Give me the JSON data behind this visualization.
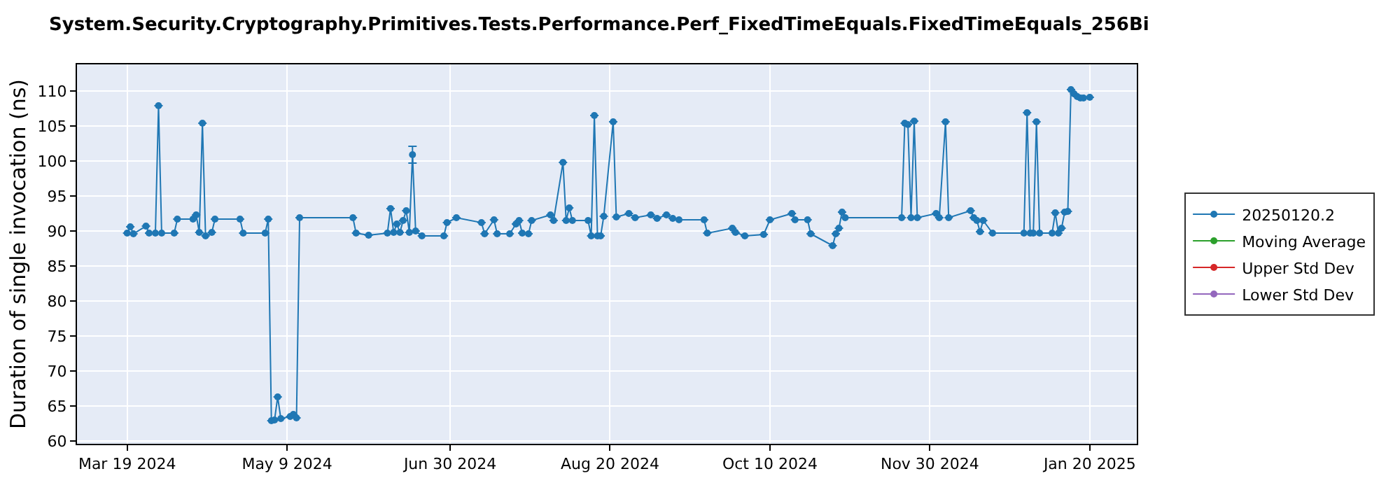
{
  "chart_data": {
    "type": "line",
    "title": "System.Security.Cryptography.Primitives.Tests.Performance.Perf_FixedTimeEquals.FixedTimeEquals_256Bi",
    "ylabel": "Duration of single invocation (ns)",
    "xlim": [
      "2024-03-03",
      "2025-02-04"
    ],
    "ylim": [
      59.6,
      113.8
    ],
    "xticks": [
      {
        "value": "2024-03-19",
        "label": "Mar 19 2024"
      },
      {
        "value": "2024-05-09",
        "label": "May 9 2024"
      },
      {
        "value": "2024-06-30",
        "label": "Jun 30 2024"
      },
      {
        "value": "2024-08-20",
        "label": "Aug 20 2024"
      },
      {
        "value": "2024-10-10",
        "label": "Oct 10 2024"
      },
      {
        "value": "2024-11-30",
        "label": "Nov 30 2024"
      },
      {
        "value": "2025-01-20",
        "label": "Jan 20 2025"
      }
    ],
    "yticks": [
      60,
      65,
      70,
      75,
      80,
      85,
      90,
      95,
      100,
      105,
      110
    ],
    "grid": true,
    "legend": "right",
    "marker": "circle",
    "line_style": "solid",
    "series": [
      {
        "name": "20250120.2",
        "color": "#1f77b4",
        "x": [
          "2024-03-19",
          "2024-03-20",
          "2024-03-21",
          "2024-03-25",
          "2024-03-26",
          "2024-03-28",
          "2024-03-29",
          "2024-03-30",
          "2024-04-03",
          "2024-04-04",
          "2024-04-09",
          "2024-04-10",
          "2024-04-11",
          "2024-04-12",
          "2024-04-13",
          "2024-04-15",
          "2024-04-16",
          "2024-04-24",
          "2024-04-25",
          "2024-05-02",
          "2024-05-03",
          "2024-05-04",
          "2024-05-05",
          "2024-05-06",
          "2024-05-07",
          "2024-05-10",
          "2024-05-11",
          "2024-05-12",
          "2024-05-13",
          "2024-05-30",
          "2024-05-31",
          "2024-06-04",
          "2024-06-10",
          "2024-06-11",
          "2024-06-12",
          "2024-06-13",
          "2024-06-14",
          "2024-06-15",
          "2024-06-16",
          "2024-06-17",
          "2024-06-18",
          "2024-06-19",
          "2024-06-21",
          "2024-06-28",
          "2024-06-29",
          "2024-07-02",
          "2024-07-10",
          "2024-07-11",
          "2024-07-14",
          "2024-07-15",
          "2024-07-19",
          "2024-07-21",
          "2024-07-22",
          "2024-07-23",
          "2024-07-25",
          "2024-07-26",
          "2024-08-01",
          "2024-08-02",
          "2024-08-05",
          "2024-08-06",
          "2024-08-07",
          "2024-08-08",
          "2024-08-13",
          "2024-08-14",
          "2024-08-15",
          "2024-08-16",
          "2024-08-17",
          "2024-08-18",
          "2024-08-21",
          "2024-08-22",
          "2024-08-26",
          "2024-08-28",
          "2024-09-02",
          "2024-09-04",
          "2024-09-07",
          "2024-09-09",
          "2024-09-11",
          "2024-09-19",
          "2024-09-20",
          "2024-09-28",
          "2024-09-29",
          "2024-10-02",
          "2024-10-08",
          "2024-10-10",
          "2024-10-17",
          "2024-10-18",
          "2024-10-22",
          "2024-10-23",
          "2024-10-30",
          "2024-10-31",
          "2024-11-01",
          "2024-11-02",
          "2024-11-03",
          "2024-11-21",
          "2024-11-22",
          "2024-11-23",
          "2024-11-24",
          "2024-11-25",
          "2024-11-26",
          "2024-12-02",
          "2024-12-03",
          "2024-12-05",
          "2024-12-06",
          "2024-12-13",
          "2024-12-14",
          "2024-12-15",
          "2024-12-16",
          "2024-12-17",
          "2024-12-20",
          "2024-12-30",
          "2024-12-31",
          "2025-01-01",
          "2025-01-02",
          "2025-01-03",
          "2025-01-04",
          "2025-01-08",
          "2025-01-09",
          "2025-01-10",
          "2025-01-11",
          "2025-01-12",
          "2025-01-13",
          "2025-01-14",
          "2025-01-15",
          "2025-01-16",
          "2025-01-17",
          "2025-01-18",
          "2025-01-20"
        ],
        "values": [
          89.7,
          90.6,
          89.6,
          90.7,
          89.7,
          89.7,
          107.9,
          89.7,
          89.7,
          91.7,
          91.7,
          92.3,
          89.8,
          105.4,
          89.3,
          89.8,
          91.7,
          91.7,
          89.7,
          89.7,
          91.7,
          62.9,
          63.0,
          66.3,
          63.2,
          63.5,
          63.8,
          63.3,
          91.9,
          91.9,
          89.7,
          89.4,
          89.7,
          93.2,
          89.8,
          91.0,
          89.8,
          91.5,
          92.9,
          89.8,
          100.9,
          90.0,
          89.3,
          89.3,
          91.2,
          91.9,
          91.2,
          89.6,
          91.6,
          89.6,
          89.6,
          91.0,
          91.5,
          89.7,
          89.6,
          91.5,
          92.3,
          91.5,
          99.8,
          91.5,
          93.3,
          91.5,
          91.5,
          89.3,
          106.5,
          89.3,
          89.3,
          92.1,
          105.6,
          92.0,
          92.5,
          91.9,
          92.3,
          91.8,
          92.3,
          91.8,
          91.6,
          91.6,
          89.7,
          90.4,
          89.8,
          89.3,
          89.5,
          91.6,
          92.5,
          91.6,
          91.6,
          89.6,
          87.9,
          89.6,
          90.4,
          92.7,
          91.9,
          91.9,
          105.4,
          105.2,
          91.9,
          105.7,
          91.9,
          92.5,
          91.9,
          105.6,
          91.9,
          92.9,
          91.9,
          91.5,
          89.9,
          91.5,
          89.7,
          89.7,
          106.9,
          89.7,
          89.7,
          105.6,
          89.7,
          89.7,
          92.6,
          89.7,
          90.4,
          92.7,
          92.8,
          110.2,
          109.6,
          109.2,
          109.0,
          109.0,
          109.1
        ],
        "errors": [
          null,
          null,
          null,
          null,
          null,
          null,
          null,
          null,
          null,
          null,
          null,
          null,
          null,
          null,
          null,
          null,
          null,
          null,
          null,
          null,
          null,
          null,
          null,
          null,
          null,
          null,
          null,
          null,
          null,
          null,
          null,
          null,
          null,
          null,
          null,
          null,
          null,
          null,
          null,
          null,
          [
            99.7,
            102.1
          ],
          null,
          null,
          null,
          null,
          null,
          null,
          null,
          null,
          null,
          null,
          null,
          null,
          null,
          null,
          null,
          null,
          null,
          null,
          null,
          null,
          null,
          null,
          null,
          null,
          null,
          null,
          null,
          null,
          null,
          null,
          null,
          null,
          null,
          null,
          null,
          null,
          null,
          null,
          null,
          null,
          null,
          null,
          null,
          null,
          null,
          null,
          null,
          null,
          null,
          null,
          null,
          null,
          null,
          null,
          null,
          null,
          null,
          null,
          null,
          null,
          null,
          null,
          null,
          null,
          null,
          null,
          null,
          null,
          null,
          null,
          null,
          null,
          null,
          null,
          null,
          null,
          null,
          null,
          null,
          null,
          null,
          null,
          null,
          null,
          null,
          null
        ]
      },
      {
        "name": "Moving Average",
        "color": "#2ca02c"
      },
      {
        "name": "Upper Std Dev",
        "color": "#d62728"
      },
      {
        "name": "Lower Std Dev",
        "color": "#9467bd"
      }
    ]
  }
}
